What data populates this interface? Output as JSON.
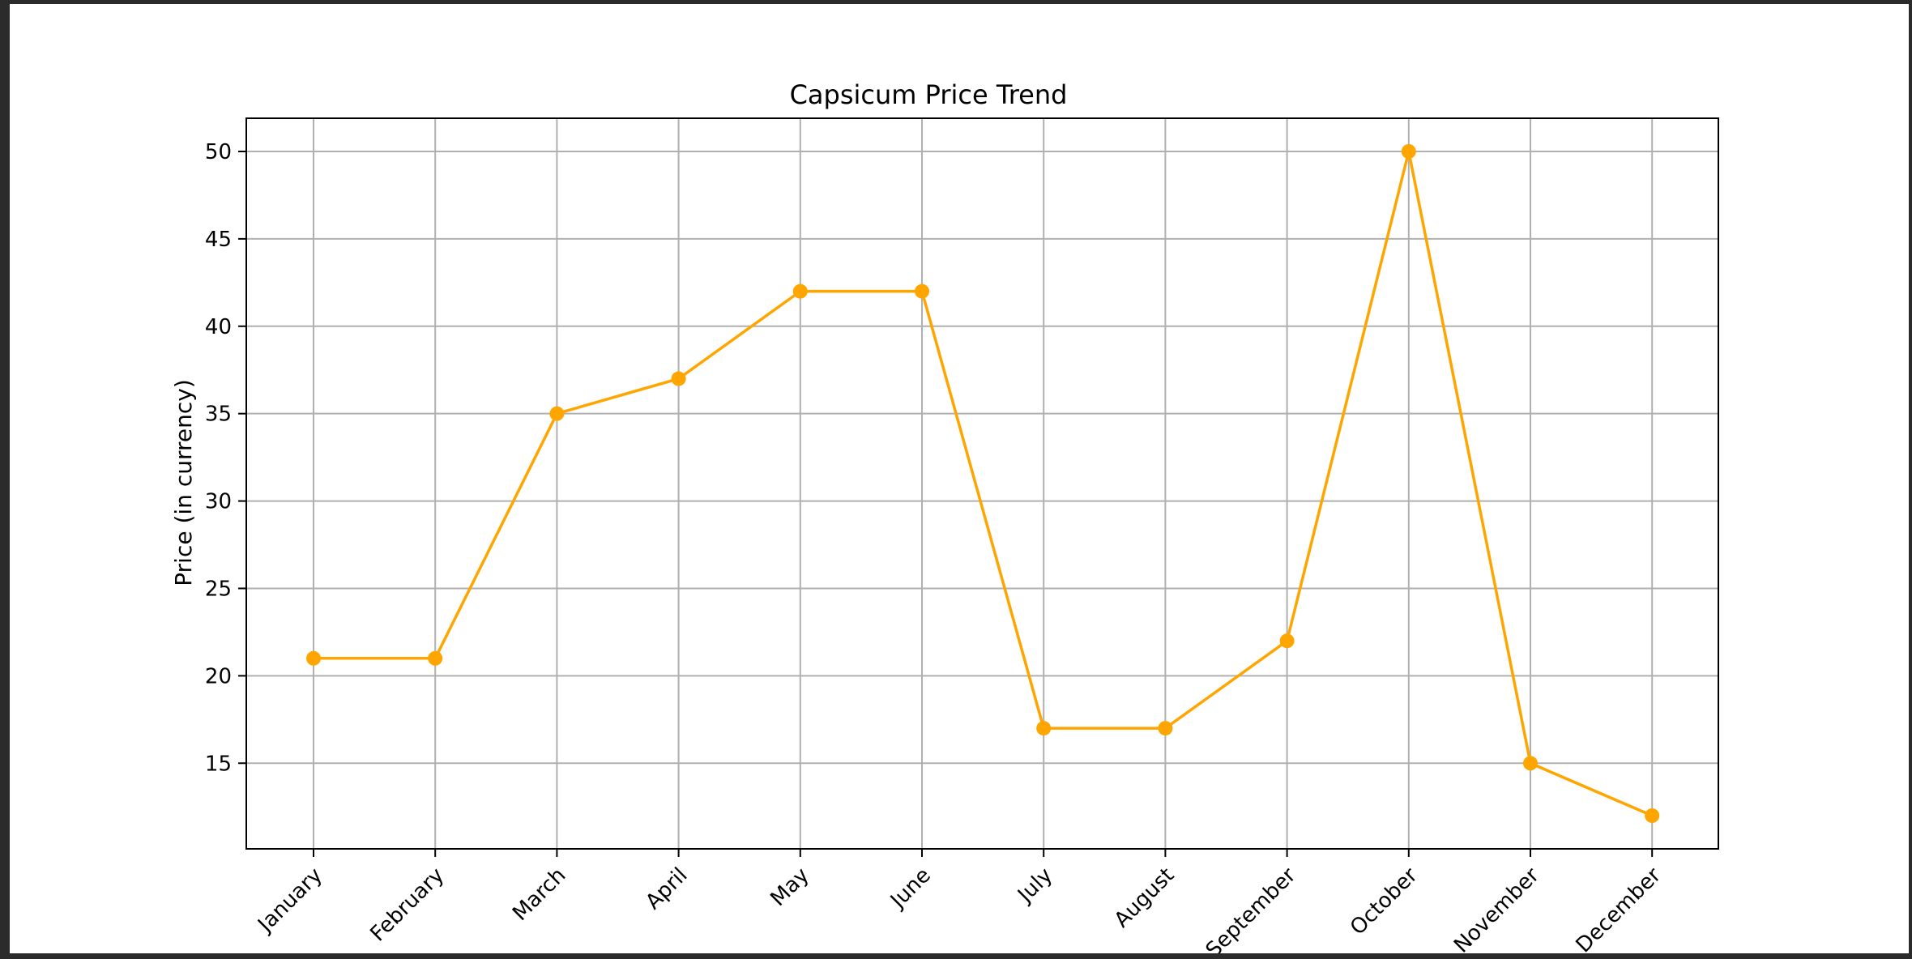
{
  "chart_data": {
    "type": "line",
    "title": "Capsicum Price Trend",
    "xlabel": "",
    "ylabel": "Price (in currency)",
    "categories": [
      "January",
      "February",
      "March",
      "April",
      "May",
      "June",
      "July",
      "August",
      "September",
      "October",
      "November",
      "December"
    ],
    "series": [
      {
        "values": [
          21,
          21,
          35,
          37,
          42,
          42,
          17,
          17,
          22,
          50,
          15,
          12
        ],
        "color": "#FFA500",
        "marker": "circle"
      }
    ],
    "yticks": [
      15,
      20,
      25,
      30,
      35,
      40,
      45,
      50
    ],
    "ylim": [
      10.1,
      51.9
    ],
    "grid": true,
    "legend": "none"
  }
}
